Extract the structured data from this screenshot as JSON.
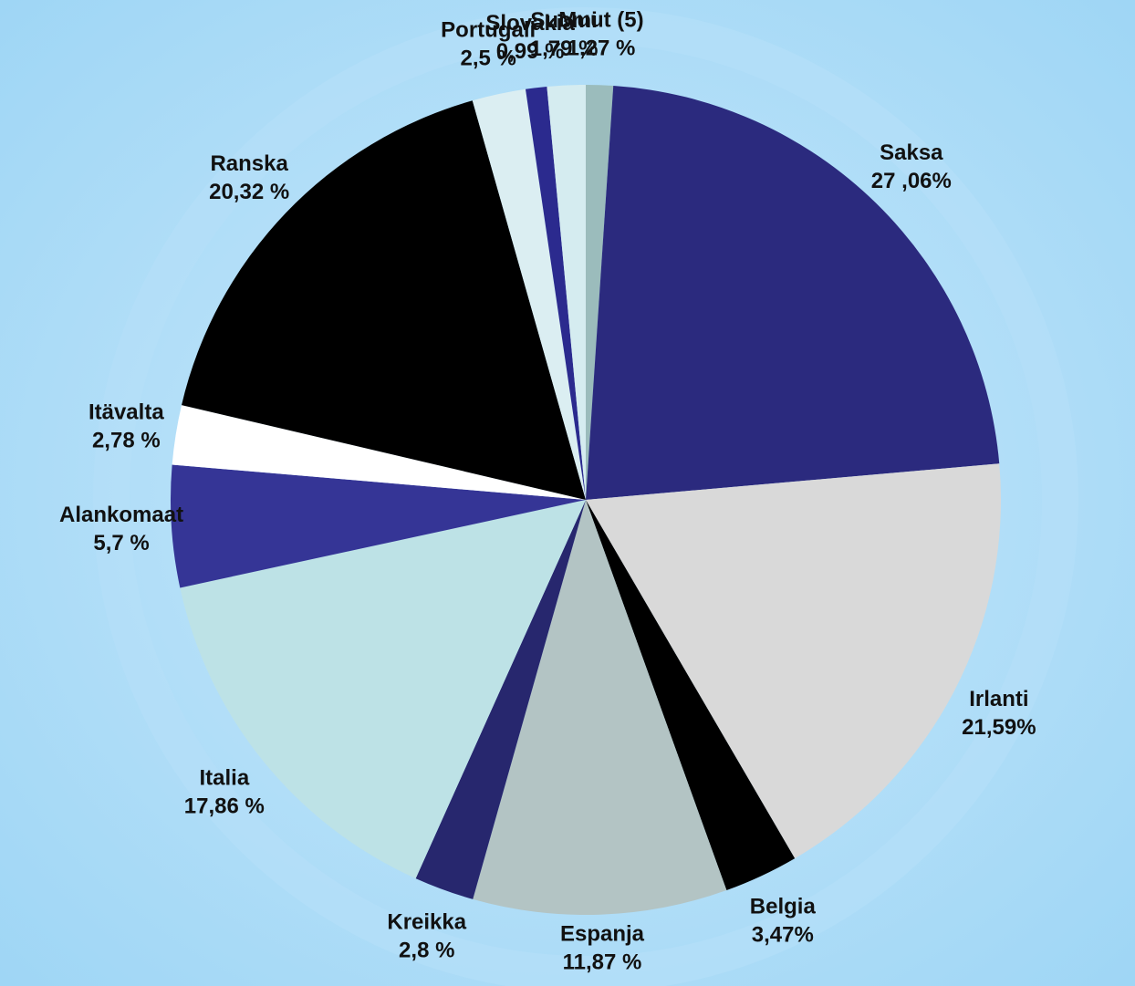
{
  "chart_data": {
    "type": "pie",
    "categories": [
      "Muut (5)",
      "Saksa",
      "Irlanti",
      "Belgia",
      "Espanja",
      "Kreikka",
      "Italia",
      "Alankomaat",
      "Itävalta",
      "Ranska",
      "Portugali",
      "Slovakia",
      "Suomi"
    ],
    "values": [
      1.27,
      27.06,
      21.59,
      3.47,
      11.87,
      2.8,
      17.86,
      5.7,
      2.78,
      20.32,
      2.5,
      0.99,
      1.79
    ],
    "value_labels": [
      "1,27 %",
      "27 ,06%",
      "21,59%",
      "3,47%",
      "11,87 %",
      "2,8 %",
      "17,86 %",
      "5,7 %",
      "2,78 %",
      "20,32 %",
      "2,5 %",
      "0,99 %",
      "1,79 %"
    ],
    "colors": [
      "#9bbcbc",
      "#2b2a7e",
      "#d9d9d9",
      "#000000",
      "#b3c4c4",
      "#27276e",
      "#bde2e6",
      "#353596",
      "#ffffff",
      "#000000",
      "#dbeef2",
      "#2b2a8e",
      "#d5ecf0"
    ]
  }
}
